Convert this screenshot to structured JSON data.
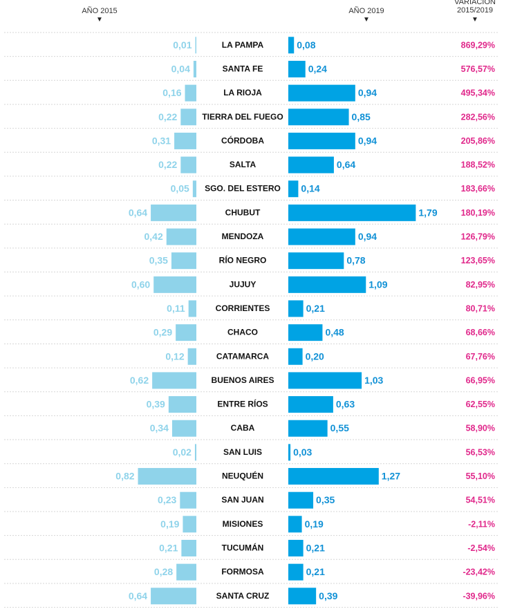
{
  "headers": {
    "year2015": "AÑO 2015",
    "year2019": "AÑO 2019",
    "variation": "VARIACIÓN\n2015/2019",
    "sort_icon": "triangle-down-icon"
  },
  "colors": {
    "bar2015": "#8fd3ea",
    "bar2019": "#00a3e4",
    "label2015": "#8fd3ea",
    "label2019": "#1191d6",
    "variation": "#e0288b",
    "province": "#111111",
    "divider": "#d6d6d6"
  },
  "chart_data": {
    "type": "bar",
    "layout": "butterfly",
    "categories": [
      "LA PAMPA",
      "SANTA FE",
      "LA RIOJA",
      "TIERRA DEL FUEGO",
      "CÓRDOBA",
      "SALTA",
      "SGO. DEL ESTERO",
      "CHUBUT",
      "MENDOZA",
      "RÍO NEGRO",
      "JUJUY",
      "CORRIENTES",
      "CHACO",
      "CATAMARCA",
      "BUENOS AIRES",
      "ENTRE RÍOS",
      "CABA",
      "SAN LUIS",
      "NEUQUÉN",
      "SAN JUAN",
      "MISIONES",
      "TUCUMÁN",
      "FORMOSA",
      "SANTA CRUZ"
    ],
    "series": [
      {
        "name": "AÑO 2015",
        "values": [
          0.01,
          0.04,
          0.16,
          0.22,
          0.31,
          0.22,
          0.05,
          0.64,
          0.42,
          0.35,
          0.6,
          0.11,
          0.29,
          0.12,
          0.62,
          0.39,
          0.34,
          0.02,
          0.82,
          0.23,
          0.19,
          0.21,
          0.28,
          0.64
        ],
        "labels": [
          "0,01",
          "0,04",
          "0,16",
          "0,22",
          "0,31",
          "0,22",
          "0,05",
          "0,64",
          "0,42",
          "0,35",
          "0,60",
          "0,11",
          "0,29",
          "0,12",
          "0,62",
          "0,39",
          "0,34",
          "0,02",
          "0,82",
          "0,23",
          "0,19",
          "0,21",
          "0,28",
          "0,64"
        ]
      },
      {
        "name": "AÑO 2019",
        "values": [
          0.08,
          0.24,
          0.94,
          0.85,
          0.94,
          0.64,
          0.14,
          1.79,
          0.94,
          0.78,
          1.09,
          0.21,
          0.48,
          0.2,
          1.03,
          0.63,
          0.55,
          0.03,
          1.27,
          0.35,
          0.19,
          0.21,
          0.21,
          0.39
        ],
        "labels": [
          "0,08",
          "0,24",
          "0,94",
          "0,85",
          "0,94",
          "0,64",
          "0,14",
          "1,79",
          "0,94",
          "0,78",
          "1,09",
          "0,21",
          "0,48",
          "0,20",
          "1,03",
          "0,63",
          "0,55",
          "0,03",
          "1,27",
          "0,35",
          "0,19",
          "0,21",
          "0,21",
          "0,39"
        ]
      }
    ],
    "variation": [
      "869,29%",
      "576,57%",
      "495,34%",
      "282,56%",
      "205,86%",
      "188,52%",
      "183,66%",
      "180,19%",
      "126,79%",
      "123,65%",
      "82,95%",
      "80,71%",
      "68,66%",
      "67,76%",
      "66,95%",
      "62,55%",
      "58,90%",
      "56,53%",
      "55,10%",
      "54,51%",
      "-2,11%",
      "-2,54%",
      "-23,42%",
      "-39,96%"
    ]
  }
}
